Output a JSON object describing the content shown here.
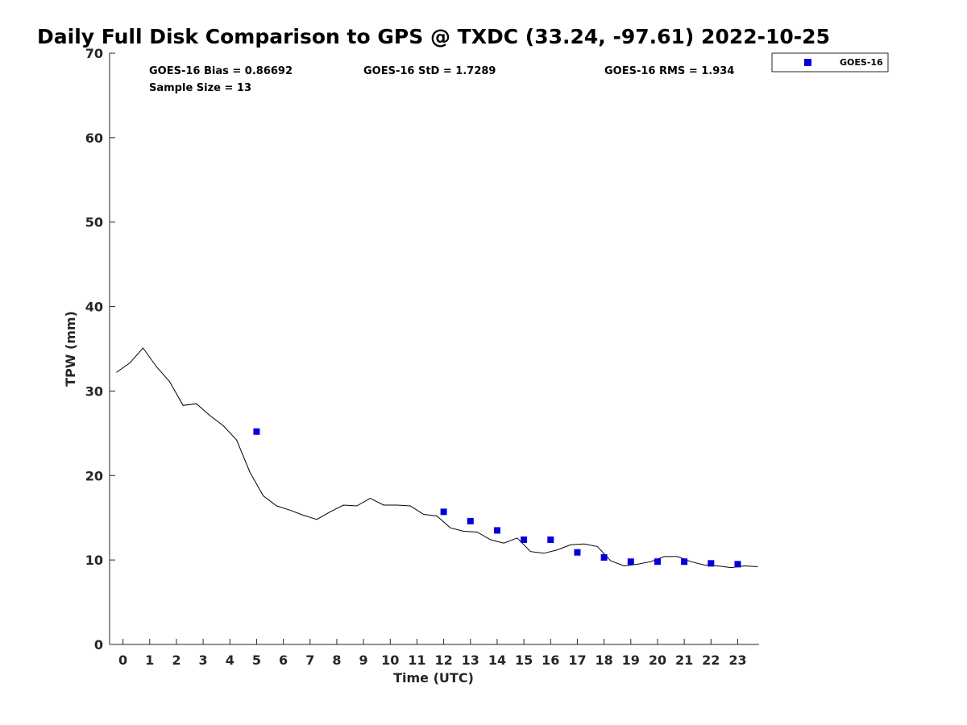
{
  "chart_data": {
    "type": "scatter",
    "title": "Daily Full Disk Comparison to GPS @ TXDC (33.24, -97.61) 2022-10-25",
    "xlabel": "Time (UTC)",
    "ylabel": "TPW (mm)",
    "xlim": [
      -0.5,
      23.8
    ],
    "ylim": [
      0,
      70
    ],
    "x_ticks": [
      0,
      1,
      2,
      3,
      4,
      5,
      6,
      7,
      8,
      9,
      10,
      11,
      12,
      13,
      14,
      15,
      16,
      17,
      18,
      19,
      20,
      21,
      22,
      23
    ],
    "y_ticks": [
      0,
      10,
      20,
      30,
      40,
      50,
      60,
      70
    ],
    "grid": false,
    "legend_position": "top-right",
    "stats": {
      "bias": "GOES-16 Bias = 0.86692",
      "std": "GOES-16 StD = 1.7289",
      "rms": "GOES-16 RMS = 1.934",
      "sample": "Sample Size = 13"
    },
    "gps_line": {
      "color": "#000000",
      "x": [
        -0.25,
        0.25,
        0.75,
        1.25,
        1.75,
        2.25,
        2.75,
        3.25,
        3.75,
        4.25,
        4.75,
        5.25,
        5.75,
        6.25,
        6.75,
        7.25,
        7.75,
        8.25,
        8.75,
        9.25,
        9.75,
        10.25,
        10.75,
        11.25,
        11.75,
        12.25,
        12.75,
        13.25,
        13.75,
        14.25,
        14.75,
        15.25,
        15.75,
        16.25,
        16.75,
        17.25,
        17.75,
        18.25,
        18.75,
        19.25,
        19.75,
        20.25,
        20.75,
        21.25,
        21.75,
        22.25,
        22.75,
        23.25,
        23.75
      ],
      "y": [
        32.2,
        33.3,
        35.1,
        32.9,
        31.1,
        28.3,
        28.5,
        27.1,
        25.9,
        24.2,
        20.4,
        17.6,
        16.4,
        15.9,
        15.3,
        14.8,
        15.7,
        16.5,
        16.4,
        17.3,
        16.5,
        16.5,
        16.4,
        15.4,
        15.2,
        13.8,
        13.4,
        13.3,
        12.4,
        12.0,
        12.6,
        11.0,
        10.8,
        11.2,
        11.8,
        11.9,
        11.6,
        9.9,
        9.3,
        9.5,
        9.8,
        10.4,
        10.4,
        9.8,
        9.4,
        9.3,
        9.1,
        9.3,
        9.2
      ]
    },
    "series": [
      {
        "name": "GOES-16",
        "color": "#0000dd",
        "marker": "square",
        "x": [
          5,
          12,
          13,
          14,
          15,
          16,
          17,
          18,
          19,
          20,
          21,
          22,
          23
        ],
        "y": [
          25.2,
          15.7,
          14.6,
          13.5,
          12.4,
          12.4,
          10.9,
          10.3,
          9.8,
          9.8,
          9.8,
          9.6,
          9.5
        ]
      }
    ]
  }
}
